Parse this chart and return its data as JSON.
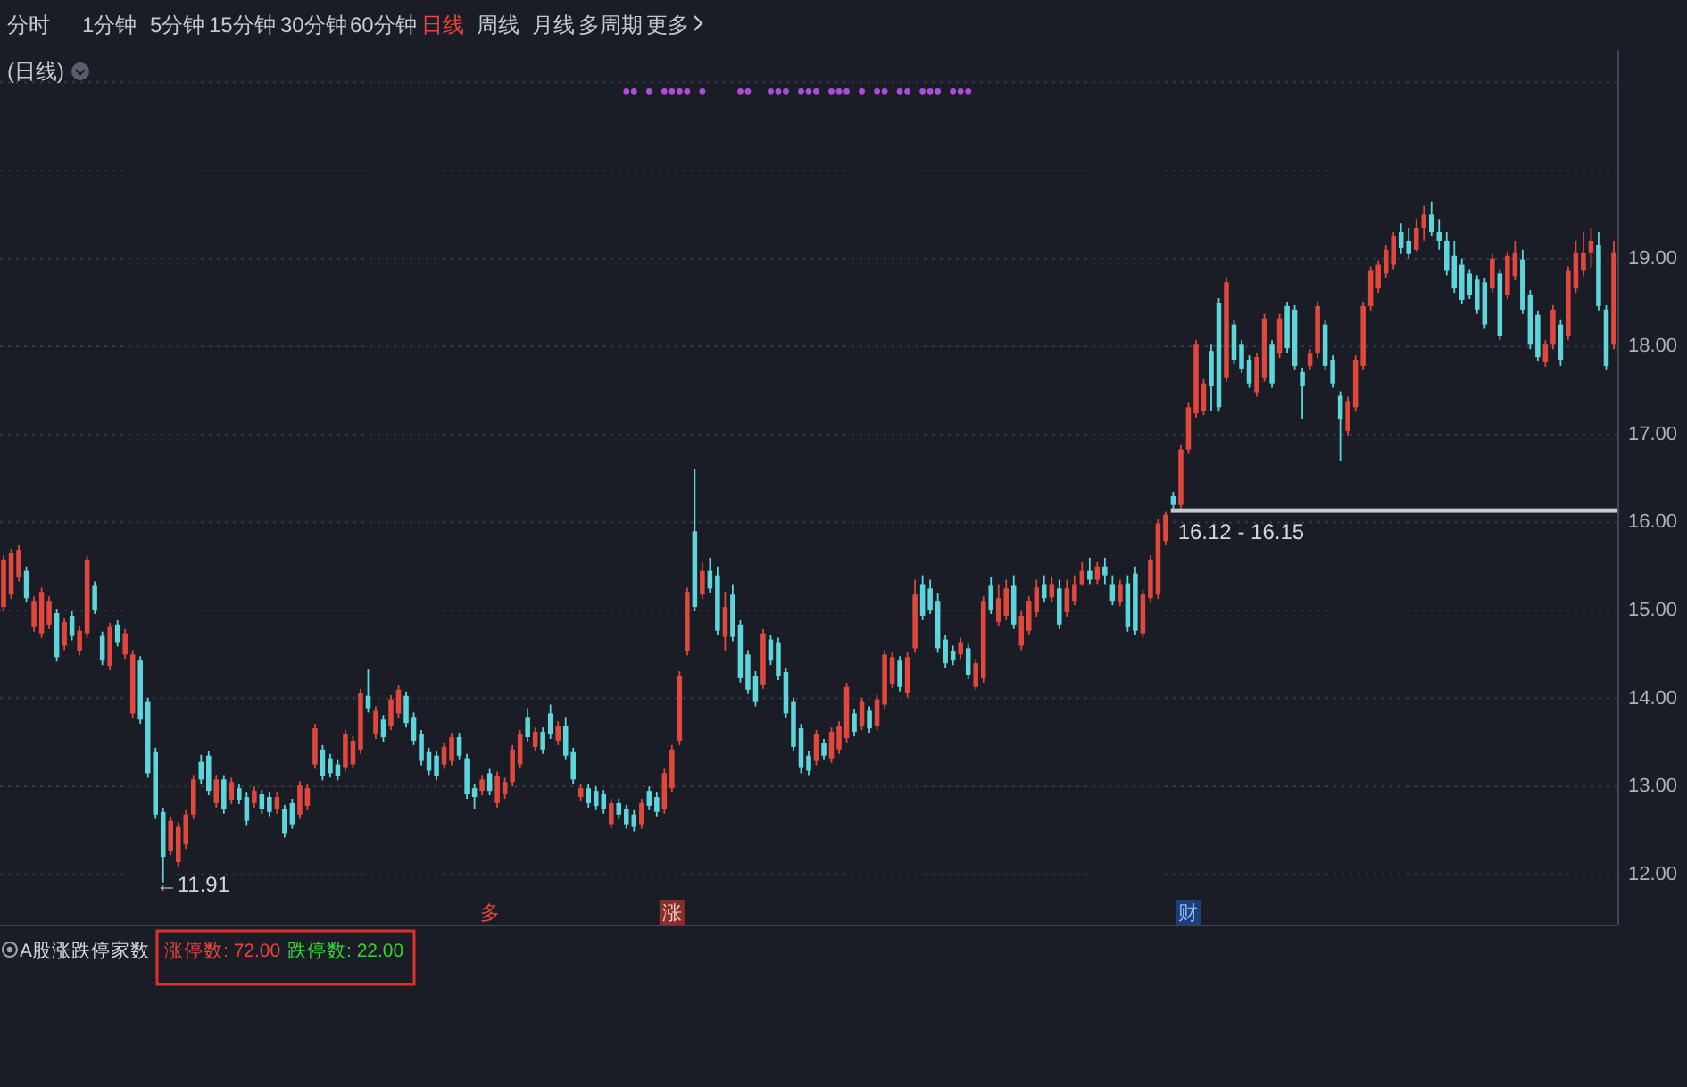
{
  "chart_data": {
    "type": "candlestick",
    "title": "(日线)",
    "categories": [
      null,
      null,
      null,
      null,
      null,
      null,
      null,
      null,
      null,
      null,
      null,
      null,
      null,
      null,
      null,
      null,
      null,
      null,
      null,
      null,
      null,
      null,
      null,
      null,
      null,
      null,
      null,
      null,
      null,
      null,
      null,
      null,
      null,
      null,
      null,
      null,
      null,
      null,
      null,
      null,
      null,
      null,
      null,
      null,
      null,
      null,
      null,
      null,
      null,
      null,
      null,
      null,
      null,
      null,
      null,
      null,
      null,
      null,
      null,
      null,
      null,
      null,
      null,
      null,
      null,
      null,
      null,
      null,
      null,
      null,
      null,
      null,
      null,
      null,
      null,
      null,
      null,
      null,
      null,
      null,
      null,
      null,
      null,
      null,
      null,
      null,
      null,
      null,
      null,
      null,
      null,
      null,
      null,
      null,
      null,
      null,
      null,
      null,
      null,
      null,
      null,
      null,
      null,
      null,
      null,
      null,
      null,
      null,
      null,
      null,
      null,
      null,
      null,
      null,
      null,
      null,
      null,
      null,
      null,
      null,
      null,
      null,
      null,
      null,
      null,
      null,
      null,
      null,
      null,
      null,
      null,
      null,
      null,
      null,
      null,
      null,
      null,
      null,
      null,
      null,
      null,
      null,
      null,
      null,
      null,
      null,
      null,
      null,
      null,
      null,
      null,
      null,
      null,
      null,
      null,
      null,
      null,
      null,
      null,
      null,
      null,
      null,
      null,
      null,
      null,
      null,
      null,
      null,
      null,
      null,
      null,
      null,
      null,
      null,
      null,
      null,
      null,
      null,
      null,
      null,
      null,
      null,
      null,
      null,
      null,
      null,
      null,
      null,
      null,
      null,
      null,
      null,
      null,
      null,
      null,
      null,
      null,
      null,
      null,
      null,
      null,
      null,
      null,
      null,
      null,
      null,
      null,
      null,
      null,
      null,
      null,
      null,
      null
    ],
    "ohlc": [
      [
        15.04,
        15.63,
        14.99,
        15.58
      ],
      [
        15.18,
        15.7,
        15.13,
        15.65
      ],
      [
        15.38,
        15.74,
        15.33,
        15.69
      ],
      [
        15.45,
        15.5,
        15.09,
        15.14
      ],
      [
        14.81,
        15.16,
        14.76,
        15.11
      ],
      [
        14.74,
        15.26,
        14.69,
        15.21
      ],
      [
        14.84,
        15.16,
        14.79,
        15.11
      ],
      [
        14.97,
        15.02,
        14.42,
        14.47
      ],
      [
        14.6,
        14.92,
        14.55,
        14.87
      ],
      [
        14.94,
        14.99,
        14.66,
        14.71
      ],
      [
        14.54,
        14.82,
        14.49,
        14.77
      ],
      [
        14.74,
        15.62,
        14.69,
        15.58
      ],
      [
        15.28,
        15.33,
        14.96,
        15.01
      ],
      [
        14.71,
        14.76,
        14.38,
        14.43
      ],
      [
        14.37,
        14.86,
        14.32,
        14.81
      ],
      [
        14.84,
        14.89,
        14.59,
        14.64
      ],
      [
        14.5,
        14.79,
        14.45,
        14.74
      ],
      [
        13.83,
        14.55,
        13.78,
        14.5
      ],
      [
        14.43,
        14.48,
        13.71,
        13.76
      ],
      [
        13.96,
        14.01,
        13.1,
        13.15
      ],
      [
        13.39,
        13.44,
        12.63,
        12.68
      ],
      [
        12.71,
        12.76,
        11.91,
        12.2
      ],
      [
        12.27,
        12.66,
        12.22,
        12.61
      ],
      [
        12.14,
        12.59,
        12.09,
        12.54
      ],
      [
        12.34,
        12.73,
        12.29,
        12.68
      ],
      [
        12.68,
        13.13,
        12.63,
        13.08
      ],
      [
        13.28,
        13.36,
        13.03,
        13.08
      ],
      [
        13.35,
        13.4,
        12.9,
        12.95
      ],
      [
        12.81,
        13.13,
        12.76,
        13.08
      ],
      [
        13.08,
        13.13,
        12.69,
        12.74
      ],
      [
        12.85,
        13.1,
        12.8,
        13.05
      ],
      [
        12.98,
        13.03,
        12.8,
        12.85
      ],
      [
        12.88,
        12.93,
        12.56,
        12.61
      ],
      [
        12.81,
        13.0,
        12.76,
        12.95
      ],
      [
        12.91,
        12.96,
        12.69,
        12.74
      ],
      [
        12.88,
        12.93,
        12.66,
        12.71
      ],
      [
        12.74,
        12.93,
        12.69,
        12.88
      ],
      [
        12.74,
        12.79,
        12.42,
        12.47
      ],
      [
        12.81,
        12.86,
        12.52,
        12.57
      ],
      [
        12.68,
        13.06,
        12.63,
        13.01
      ],
      [
        12.78,
        13.03,
        12.73,
        12.98
      ],
      [
        13.25,
        13.71,
        13.2,
        13.66
      ],
      [
        13.42,
        13.47,
        13.07,
        13.12
      ],
      [
        13.32,
        13.37,
        13.1,
        13.15
      ],
      [
        13.25,
        13.3,
        13.07,
        13.12
      ],
      [
        13.22,
        13.64,
        13.17,
        13.59
      ],
      [
        13.25,
        13.57,
        13.2,
        13.52
      ],
      [
        13.42,
        14.11,
        13.37,
        14.06
      ],
      [
        14.03,
        14.33,
        13.84,
        13.89
      ],
      [
        13.59,
        13.91,
        13.54,
        13.86
      ],
      [
        13.76,
        13.81,
        13.51,
        13.56
      ],
      [
        13.69,
        14.04,
        13.64,
        13.99
      ],
      [
        13.83,
        14.15,
        13.78,
        14.1
      ],
      [
        14.03,
        14.08,
        13.67,
        13.72
      ],
      [
        13.79,
        13.84,
        13.47,
        13.52
      ],
      [
        13.59,
        13.64,
        13.24,
        13.29
      ],
      [
        13.39,
        13.44,
        13.13,
        13.18
      ],
      [
        13.35,
        13.4,
        13.07,
        13.12
      ],
      [
        13.25,
        13.5,
        13.2,
        13.45
      ],
      [
        13.29,
        13.61,
        13.24,
        13.56
      ],
      [
        13.56,
        13.61,
        13.3,
        13.35
      ],
      [
        13.32,
        13.37,
        12.86,
        12.91
      ],
      [
        12.98,
        13.03,
        12.74,
        12.88
      ],
      [
        12.95,
        13.13,
        12.9,
        13.08
      ],
      [
        13.15,
        13.2,
        12.9,
        12.95
      ],
      [
        12.81,
        13.17,
        12.76,
        13.12
      ],
      [
        12.91,
        13.1,
        12.86,
        13.05
      ],
      [
        13.05,
        13.47,
        13.0,
        13.42
      ],
      [
        13.25,
        13.64,
        13.2,
        13.59
      ],
      [
        13.79,
        13.89,
        13.51,
        13.56
      ],
      [
        13.45,
        13.67,
        13.4,
        13.62
      ],
      [
        13.62,
        13.67,
        13.37,
        13.42
      ],
      [
        13.83,
        13.93,
        13.54,
        13.59
      ],
      [
        13.52,
        13.74,
        13.47,
        13.69
      ],
      [
        13.69,
        13.79,
        13.3,
        13.35
      ],
      [
        13.39,
        13.44,
        13.03,
        13.08
      ],
      [
        12.88,
        13.03,
        12.83,
        12.98
      ],
      [
        12.98,
        13.03,
        12.76,
        12.81
      ],
      [
        12.95,
        13.0,
        12.73,
        12.78
      ],
      [
        12.91,
        12.96,
        12.69,
        12.74
      ],
      [
        12.57,
        12.86,
        12.52,
        12.81
      ],
      [
        12.81,
        12.86,
        12.63,
        12.68
      ],
      [
        12.74,
        12.79,
        12.52,
        12.57
      ],
      [
        12.68,
        12.73,
        12.49,
        12.54
      ],
      [
        12.57,
        12.86,
        12.52,
        12.81
      ],
      [
        12.95,
        13.0,
        12.73,
        12.78
      ],
      [
        12.88,
        12.93,
        12.66,
        12.71
      ],
      [
        12.74,
        13.2,
        12.69,
        13.15
      ],
      [
        12.98,
        13.47,
        12.93,
        13.42
      ],
      [
        13.52,
        14.31,
        13.47,
        14.26
      ],
      [
        14.54,
        15.26,
        14.49,
        15.21
      ],
      [
        15.9,
        16.61,
        14.99,
        15.04
      ],
      [
        15.18,
        15.55,
        15.13,
        15.45
      ],
      [
        15.45,
        15.6,
        15.2,
        15.25
      ],
      [
        15.4,
        15.5,
        14.72,
        14.77
      ],
      [
        14.7,
        15.21,
        14.54,
        15.04
      ],
      [
        15.18,
        15.3,
        14.65,
        14.7
      ],
      [
        14.84,
        14.89,
        14.18,
        14.23
      ],
      [
        14.5,
        14.55,
        14.05,
        14.1
      ],
      [
        14.26,
        14.31,
        13.91,
        13.96
      ],
      [
        14.16,
        14.79,
        14.11,
        14.74
      ],
      [
        14.67,
        14.72,
        14.38,
        14.43
      ],
      [
        14.64,
        14.69,
        14.21,
        14.26
      ],
      [
        14.3,
        14.35,
        13.78,
        13.83
      ],
      [
        13.96,
        14.01,
        13.4,
        13.45
      ],
      [
        13.66,
        13.71,
        13.15,
        13.22
      ],
      [
        13.35,
        13.4,
        13.13,
        13.18
      ],
      [
        13.29,
        13.64,
        13.24,
        13.59
      ],
      [
        13.49,
        13.54,
        13.3,
        13.35
      ],
      [
        13.32,
        13.67,
        13.27,
        13.62
      ],
      [
        13.42,
        13.74,
        13.37,
        13.69
      ],
      [
        13.55,
        14.18,
        13.5,
        14.13
      ],
      [
        13.83,
        13.88,
        13.57,
        13.62
      ],
      [
        13.69,
        14.01,
        13.64,
        13.96
      ],
      [
        13.86,
        13.91,
        13.61,
        13.66
      ],
      [
        13.69,
        14.04,
        13.64,
        13.99
      ],
      [
        13.93,
        14.55,
        13.88,
        14.5
      ],
      [
        14.17,
        14.52,
        14.12,
        14.47
      ],
      [
        14.43,
        14.48,
        14.08,
        14.13
      ],
      [
        14.06,
        14.52,
        14.01,
        14.47
      ],
      [
        14.57,
        15.35,
        14.52,
        15.18
      ],
      [
        15.3,
        15.4,
        14.89,
        14.94
      ],
      [
        15.25,
        15.35,
        14.96,
        15.01
      ],
      [
        15.11,
        15.2,
        14.52,
        14.57
      ],
      [
        14.67,
        14.72,
        14.35,
        14.4
      ],
      [
        14.54,
        14.6,
        14.38,
        14.43
      ],
      [
        14.5,
        14.69,
        14.45,
        14.64
      ],
      [
        14.57,
        14.62,
        14.22,
        14.27
      ],
      [
        14.13,
        14.45,
        14.1,
        14.4
      ],
      [
        14.23,
        15.16,
        14.18,
        15.11
      ],
      [
        15.28,
        15.38,
        14.96,
        15.01
      ],
      [
        14.87,
        15.3,
        14.82,
        15.14
      ],
      [
        14.94,
        15.35,
        14.89,
        15.25
      ],
      [
        15.28,
        15.4,
        14.79,
        14.84
      ],
      [
        14.6,
        14.99,
        14.55,
        14.94
      ],
      [
        14.77,
        15.16,
        14.72,
        15.11
      ],
      [
        14.98,
        15.35,
        14.93,
        15.26
      ],
      [
        15.3,
        15.4,
        15.09,
        15.14
      ],
      [
        15.15,
        15.38,
        15.1,
        15.3
      ],
      [
        15.25,
        15.35,
        14.79,
        14.84
      ],
      [
        14.98,
        15.35,
        14.93,
        15.25
      ],
      [
        15.11,
        15.4,
        15.06,
        15.3
      ],
      [
        15.3,
        15.55,
        15.28,
        15.45
      ],
      [
        15.45,
        15.6,
        15.3,
        15.35
      ],
      [
        15.35,
        15.55,
        15.3,
        15.5
      ],
      [
        15.5,
        15.6,
        15.3,
        15.4
      ],
      [
        15.3,
        15.4,
        15.06,
        15.11
      ],
      [
        15.1,
        15.35,
        15.05,
        15.3
      ],
      [
        15.31,
        15.4,
        14.76,
        14.81
      ],
      [
        15.42,
        15.5,
        14.72,
        14.77
      ],
      [
        14.74,
        15.23,
        14.69,
        15.18
      ],
      [
        15.14,
        15.63,
        15.09,
        15.58
      ],
      [
        15.18,
        16.04,
        15.13,
        15.99
      ],
      [
        15.79,
        16.12,
        15.74,
        16.09
      ],
      [
        16.3,
        16.35,
        16.15,
        16.2
      ],
      [
        16.2,
        16.88,
        16.16,
        16.83
      ],
      [
        16.83,
        17.36,
        16.78,
        17.31
      ],
      [
        17.24,
        18.07,
        17.19,
        18.02
      ],
      [
        17.27,
        17.63,
        17.22,
        17.58
      ],
      [
        17.95,
        18.02,
        17.27,
        17.55
      ],
      [
        18.49,
        18.55,
        17.26,
        17.31
      ],
      [
        17.65,
        18.78,
        17.6,
        18.73
      ],
      [
        18.25,
        18.3,
        17.8,
        17.85
      ],
      [
        18.02,
        18.07,
        17.7,
        17.75
      ],
      [
        17.85,
        17.9,
        17.53,
        17.58
      ],
      [
        17.48,
        17.93,
        17.43,
        17.88
      ],
      [
        17.65,
        18.37,
        17.6,
        18.32
      ],
      [
        18.02,
        18.07,
        17.53,
        17.58
      ],
      [
        17.92,
        18.37,
        17.87,
        18.32
      ],
      [
        18.46,
        18.51,
        17.93,
        17.98
      ],
      [
        18.42,
        18.47,
        17.73,
        17.78
      ],
      [
        17.71,
        17.76,
        17.17,
        17.55
      ],
      [
        17.78,
        17.97,
        17.73,
        17.92
      ],
      [
        17.92,
        18.51,
        17.87,
        18.46
      ],
      [
        18.25,
        18.3,
        17.73,
        17.78
      ],
      [
        17.85,
        17.9,
        17.53,
        17.58
      ],
      [
        17.44,
        17.49,
        16.7,
        17.17
      ],
      [
        17.04,
        17.43,
        16.99,
        17.38
      ],
      [
        17.31,
        17.9,
        17.26,
        17.85
      ],
      [
        17.78,
        18.51,
        17.73,
        18.46
      ],
      [
        18.46,
        18.91,
        18.41,
        18.86
      ],
      [
        18.66,
        18.98,
        18.61,
        18.93
      ],
      [
        18.83,
        19.15,
        18.78,
        19.1
      ],
      [
        18.93,
        19.3,
        18.88,
        19.25
      ],
      [
        19.3,
        19.4,
        19.05,
        19.12
      ],
      [
        19.2,
        19.35,
        19.0,
        19.05
      ],
      [
        19.1,
        19.45,
        19.08,
        19.35
      ],
      [
        19.35,
        19.6,
        19.2,
        19.5
      ],
      [
        19.5,
        19.65,
        19.25,
        19.3
      ],
      [
        19.3,
        19.45,
        19.1,
        19.2
      ],
      [
        19.2,
        19.3,
        18.81,
        18.86
      ],
      [
        19.03,
        19.2,
        18.61,
        18.66
      ],
      [
        18.93,
        19.0,
        18.48,
        18.53
      ],
      [
        18.83,
        18.88,
        18.54,
        18.59
      ],
      [
        18.76,
        18.81,
        18.37,
        18.42
      ],
      [
        18.73,
        18.78,
        18.2,
        18.25
      ],
      [
        18.66,
        19.05,
        18.61,
        19.0
      ],
      [
        18.83,
        18.88,
        18.07,
        18.12
      ],
      [
        18.59,
        19.08,
        18.54,
        19.03
      ],
      [
        18.8,
        19.2,
        18.75,
        19.07
      ],
      [
        18.99,
        19.1,
        18.37,
        18.42
      ],
      [
        18.59,
        18.64,
        17.97,
        18.02
      ],
      [
        18.36,
        18.41,
        17.83,
        17.88
      ],
      [
        17.82,
        18.07,
        17.77,
        18.02
      ],
      [
        18.02,
        18.47,
        17.97,
        18.42
      ],
      [
        18.25,
        18.3,
        17.78,
        17.85
      ],
      [
        18.12,
        18.91,
        18.07,
        18.86
      ],
      [
        18.66,
        19.2,
        18.61,
        19.07
      ],
      [
        18.86,
        19.3,
        18.8,
        19.07
      ],
      [
        19.07,
        19.35,
        18.9,
        19.2
      ],
      [
        19.15,
        19.3,
        18.41,
        18.46
      ],
      [
        18.42,
        18.47,
        17.73,
        17.78
      ],
      [
        18.02,
        19.2,
        17.97,
        19.07
      ]
    ],
    "colors": [
      "#e0483e",
      "#e0483e",
      "#e0483e",
      "#5dd5db",
      "#e0483e",
      "#e0483e",
      "#e0483e",
      "#5dd5db",
      "#e0483e",
      "#5dd5db",
      "#e0483e",
      "#e0483e",
      "#5dd5db",
      "#5dd5db",
      "#e0483e",
      "#5dd5db",
      "#e0483e",
      "#e0483e",
      "#5dd5db",
      "#5dd5db",
      "#5dd5db",
      "#5dd5db",
      "#e0483e",
      "#e0483e",
      "#e0483e",
      "#e0483e",
      "#5dd5db",
      "#5dd5db",
      "#e0483e",
      "#5dd5db",
      "#e0483e",
      "#5dd5db",
      "#5dd5db",
      "#e0483e",
      "#5dd5db",
      "#5dd5db",
      "#e0483e",
      "#5dd5db",
      "#5dd5db",
      "#e0483e",
      "#e0483e",
      "#e0483e",
      "#5dd5db",
      "#5dd5db",
      "#5dd5db",
      "#e0483e",
      "#e0483e",
      "#e0483e",
      "#5dd5db",
      "#e0483e",
      "#5dd5db",
      "#e0483e",
      "#e0483e",
      "#5dd5db",
      "#5dd5db",
      "#5dd5db",
      "#5dd5db",
      "#5dd5db",
      "#e0483e",
      "#e0483e",
      "#5dd5db",
      "#5dd5db",
      "#5dd5db",
      "#e0483e",
      "#5dd5db",
      "#e0483e",
      "#e0483e",
      "#e0483e",
      "#e0483e",
      "#5dd5db",
      "#e0483e",
      "#5dd5db",
      "#5dd5db",
      "#e0483e",
      "#5dd5db",
      "#5dd5db",
      "#e0483e",
      "#5dd5db",
      "#5dd5db",
      "#5dd5db",
      "#e0483e",
      "#5dd5db",
      "#5dd5db",
      "#5dd5db",
      "#e0483e",
      "#5dd5db",
      "#5dd5db",
      "#e0483e",
      "#e0483e",
      "#e0483e",
      "#e0483e",
      "#5dd5db",
      "#e0483e",
      "#5dd5db",
      "#5dd5db",
      "#e0483e",
      "#5dd5db",
      "#5dd5db",
      "#5dd5db",
      "#5dd5db",
      "#e0483e",
      "#5dd5db",
      "#5dd5db",
      "#5dd5db",
      "#5dd5db",
      "#5dd5db",
      "#5dd5db",
      "#e0483e",
      "#5dd5db",
      "#e0483e",
      "#e0483e",
      "#e0483e",
      "#5dd5db",
      "#e0483e",
      "#5dd5db",
      "#e0483e",
      "#e0483e",
      "#e0483e",
      "#5dd5db",
      "#e0483e",
      "#e0483e",
      "#5dd5db",
      "#5dd5db",
      "#5dd5db",
      "#5dd5db",
      "#5dd5db",
      "#e0483e",
      "#5dd5db",
      "#e0483e",
      "#e0483e",
      "#5dd5db",
      "#e0483e",
      "#e0483e",
      "#5dd5db",
      "#e0483e",
      "#e0483e",
      "#e0483e",
      "#5dd5db",
      "#e0483e",
      "#5dd5db",
      "#e0483e",
      "#e0483e",
      "#e0483e",
      "#5dd5db",
      "#e0483e",
      "#5dd5db",
      "#5dd5db",
      "#e0483e",
      "#5dd5db",
      "#5dd5db",
      "#e0483e",
      "#e0483e",
      "#e0483e",
      "#e0483e",
      "#5dd5db",
      "#e0483e",
      "#e0483e",
      "#e0483e",
      "#e0483e",
      "#5dd5db",
      "#5dd5db",
      "#e0483e",
      "#5dd5db",
      "#5dd5db",
      "#5dd5db",
      "#e0483e",
      "#e0483e",
      "#5dd5db",
      "#e0483e",
      "#5dd5db",
      "#5dd5db",
      "#5dd5db",
      "#e0483e",
      "#e0483e",
      "#5dd5db",
      "#5dd5db",
      "#5dd5db",
      "#e0483e",
      "#e0483e",
      "#e0483e",
      "#e0483e",
      "#e0483e",
      "#e0483e",
      "#e0483e",
      "#5dd5db",
      "#5dd5db",
      "#e0483e",
      "#e0483e",
      "#5dd5db",
      "#5dd5db",
      "#5dd5db",
      "#5dd5db",
      "#5dd5db",
      "#5dd5db",
      "#5dd5db",
      "#5dd5db",
      "#e0483e",
      "#5dd5db",
      "#e0483e",
      "#e0483e",
      "#5dd5db",
      "#5dd5db",
      "#5dd5db",
      "#e0483e",
      "#e0483e",
      "#5dd5db",
      "#e0483e",
      "#e0483e",
      "#e0483e",
      "#e0483e",
      "#5dd5db",
      "#5dd5db",
      "#e0483e"
    ],
    "series": [
      {
        "type": "scatter",
        "color": "#a94fd6",
        "marker": "circle",
        "values": [
          null,
          null,
          null,
          null,
          null,
          null,
          null,
          null,
          null,
          null,
          null,
          null,
          null,
          null,
          null,
          null,
          null,
          null,
          null,
          null,
          null,
          null,
          null,
          null,
          null,
          null,
          null,
          null,
          null,
          null,
          null,
          null,
          null,
          null,
          null,
          null,
          null,
          null,
          null,
          null,
          null,
          null,
          null,
          null,
          null,
          null,
          null,
          null,
          null,
          null,
          null,
          null,
          null,
          null,
          null,
          null,
          null,
          null,
          null,
          null,
          null,
          null,
          null,
          null,
          null,
          null,
          null,
          null,
          null,
          null,
          null,
          null,
          null,
          null,
          null,
          null,
          null,
          null,
          null,
          null,
          null,
          null,
          20.9,
          20.9,
          null,
          20.9,
          null,
          20.9,
          20.9,
          20.9,
          20.9,
          null,
          20.9,
          null,
          null,
          null,
          null,
          20.9,
          20.9,
          null,
          null,
          20.9,
          20.9,
          20.9,
          null,
          20.9,
          20.9,
          20.9,
          null,
          20.9,
          20.9,
          20.9,
          null,
          20.9,
          null,
          20.9,
          20.9,
          null,
          20.9,
          20.9,
          null,
          20.9,
          20.9,
          20.9,
          null,
          20.9,
          20.9,
          20.9,
          null,
          null,
          null,
          null,
          null,
          null,
          null,
          null,
          null,
          null,
          null,
          null,
          null,
          null,
          null,
          null,
          null,
          null,
          null,
          null,
          null,
          null,
          null,
          null,
          null,
          null,
          null,
          null,
          null,
          null,
          null,
          null,
          null,
          null,
          null,
          null,
          null,
          null,
          null,
          null,
          null,
          null,
          null,
          null,
          null,
          null,
          null,
          null,
          null,
          null,
          null,
          null,
          null,
          null,
          null,
          null,
          null,
          null,
          null,
          null,
          null,
          null,
          null,
          null,
          null,
          null,
          null,
          null,
          null,
          null,
          null,
          null,
          null,
          null,
          null,
          null,
          null,
          null,
          null,
          null,
          null,
          null,
          null,
          null,
          null
        ]
      }
    ],
    "ylim": [
      11.43,
      21.37
    ],
    "yticks": [
      {
        "value": 12,
        "label": "12.00"
      },
      {
        "value": 13,
        "label": "13.00"
      },
      {
        "value": 14,
        "label": "14.00"
      },
      {
        "value": 15,
        "label": "15.00"
      },
      {
        "value": 16,
        "label": "16.00"
      },
      {
        "value": 17,
        "label": "17.00"
      },
      {
        "value": 18,
        "label": "18.00"
      },
      {
        "value": 19,
        "label": "19.00"
      },
      {
        "value": 20,
        "label": null
      },
      {
        "value": 21,
        "label": null
      }
    ],
    "grid": "y",
    "tick_labels": "y",
    "bands": [
      {
        "axis": "y",
        "from": 16.12,
        "to": 16.15,
        "label": "16.12 - 16.15",
        "color": "#c9c9c9"
      }
    ],
    "annotations": [
      "分时",
      "1分钟",
      "5分钟",
      "15分钟",
      "30分钟",
      "60分钟",
      "日线",
      "周线",
      "月线",
      "多周期",
      "更多",
      "←11.91",
      "多",
      "涨",
      "财",
      "A股涨跌停家数",
      "涨停数: 72.00",
      "跌停数: 22.00"
    ]
  }
}
